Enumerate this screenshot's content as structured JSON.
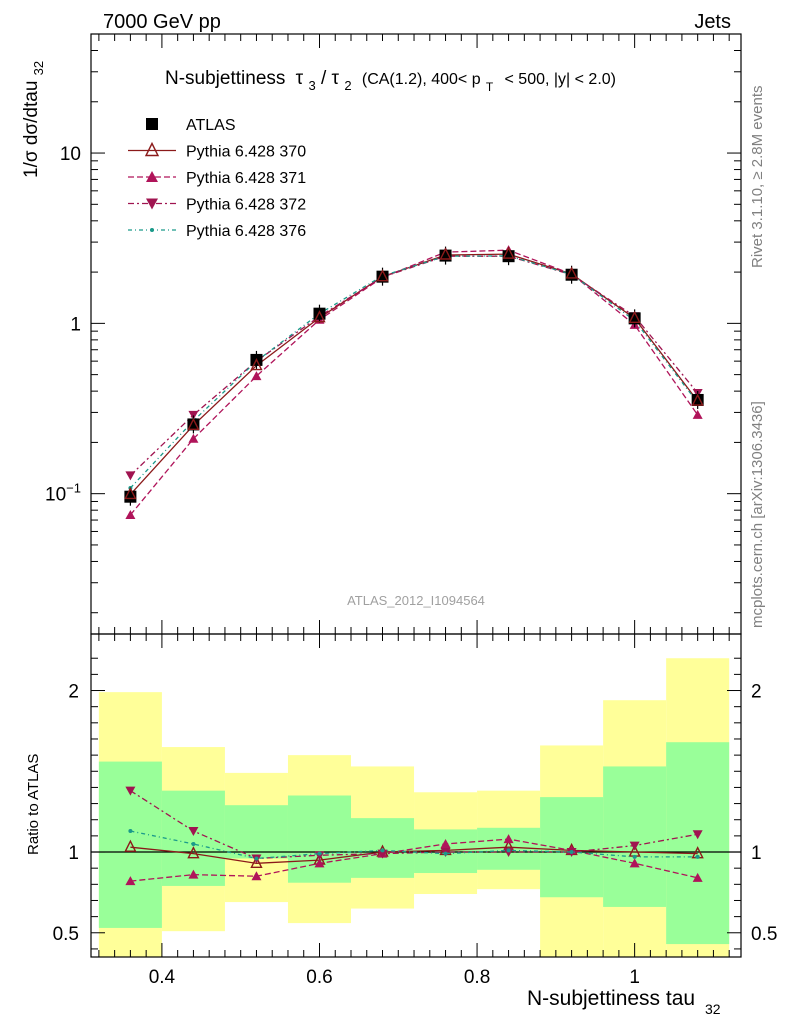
{
  "header": {
    "left": "7000 GeV pp",
    "right": "Jets"
  },
  "title": {
    "main": "N-subjettiness",
    "tau_a": "τ",
    "sub_a": "3",
    "slash": "/",
    "tau_b": "τ",
    "sub_b": "2",
    "cuts_1": "(CA(1.2), 400< p",
    "cuts_sub": "T",
    "cuts_2": "< 500, |y| < 2.0)"
  },
  "side": {
    "rivet": "Rivet 3.1.10, ≥ 2.8M events",
    "mcplots": "mcplots.cern.ch [arXiv:1306.3436]"
  },
  "analysis_id": "ATLAS_2012_I1094564",
  "ylabel_main": "1/σ dσ/dtau",
  "ylabel_main_sub": "32",
  "ylabel_ratio": "Ratio to ATLAS",
  "xlabel": "N-subjettiness tau",
  "xlabel_sub": "32",
  "colors": {
    "data": "#000000",
    "p370": "#8b1a1a",
    "p371": "#b0145a",
    "p372": "#a01450",
    "p376": "#1a9a8a",
    "band_inner": "#99ff99",
    "band_outer": "#ffff99"
  },
  "chart_data": {
    "type": "line",
    "x_edges": [
      0.32,
      0.4,
      0.48,
      0.56,
      0.64,
      0.72,
      0.8,
      0.88,
      0.96,
      1.04,
      1.12
    ],
    "x": [
      0.36,
      0.44,
      0.52,
      0.6,
      0.68,
      0.76,
      0.84,
      0.92,
      1.0,
      1.08
    ],
    "main": {
      "yscale": "log",
      "ylim": [
        0.015,
        50
      ],
      "yticks": [
        {
          "v": 0.1,
          "base": "10",
          "exp": "−1"
        },
        {
          "v": 1,
          "label": "1"
        },
        {
          "v": 10,
          "label": "10"
        }
      ],
      "series": [
        {
          "name": "ATLAS",
          "key": "data",
          "marker": "square",
          "dash": "none",
          "values": [
            0.096,
            0.255,
            0.61,
            1.14,
            1.88,
            2.5,
            2.48,
            1.93,
            1.07,
            0.355
          ]
        },
        {
          "name": "Pythia 6.428 370",
          "key": "p370",
          "marker": "triangle-up-open",
          "dash": "solid",
          "values": [
            0.099,
            0.252,
            0.565,
            1.08,
            1.88,
            2.52,
            2.55,
            1.95,
            1.07,
            0.35
          ]
        },
        {
          "name": "Pythia 6.428 371",
          "key": "p371",
          "marker": "triangle-up",
          "dash": "6,3",
          "values": [
            0.075,
            0.21,
            0.49,
            1.05,
            1.86,
            2.62,
            2.69,
            1.95,
            0.98,
            0.29
          ]
        },
        {
          "name": "Pythia 6.428 372",
          "key": "p372",
          "marker": "triangle-down",
          "dash": "6,3,2,3",
          "values": [
            0.128,
            0.29,
            0.6,
            1.1,
            1.87,
            2.48,
            2.48,
            1.93,
            1.1,
            0.39
          ]
        },
        {
          "name": "Pythia 6.428 376",
          "key": "p376",
          "marker": "small-dot",
          "dash": "4,3,1,3",
          "values": [
            0.108,
            0.268,
            0.6,
            1.14,
            1.9,
            2.48,
            2.49,
            1.94,
            1.04,
            0.342
          ]
        }
      ]
    },
    "ratio": {
      "ylim": [
        0.35,
        2.35
      ],
      "yticks": [
        0.5,
        1,
        2
      ],
      "band_inner": [
        [
          0.53,
          1.56
        ],
        [
          0.79,
          1.38
        ],
        [
          0.96,
          1.29
        ],
        [
          0.81,
          1.35
        ],
        [
          0.84,
          1.21
        ],
        [
          0.87,
          1.14
        ],
        [
          0.89,
          1.15
        ],
        [
          0.72,
          1.34
        ],
        [
          0.66,
          1.53
        ],
        [
          0.43,
          1.68
        ]
      ],
      "band_outer": [
        [
          0.35,
          1.99
        ],
        [
          0.51,
          1.65
        ],
        [
          0.69,
          1.49
        ],
        [
          0.56,
          1.6
        ],
        [
          0.65,
          1.53
        ],
        [
          0.74,
          1.37
        ],
        [
          0.77,
          1.38
        ],
        [
          0.35,
          1.66
        ],
        [
          0.35,
          1.94
        ],
        [
          0.35,
          2.2
        ]
      ],
      "series": [
        {
          "key": "p370",
          "values": [
            1.03,
            0.99,
            0.93,
            0.95,
            1.0,
            1.01,
            1.03,
            1.01,
            1.0,
            0.99
          ]
        },
        {
          "key": "p371",
          "values": [
            0.82,
            0.86,
            0.85,
            0.93,
            0.99,
            1.05,
            1.08,
            1.01,
            0.93,
            0.84
          ]
        },
        {
          "key": "p372",
          "values": [
            1.38,
            1.13,
            0.96,
            0.98,
            0.99,
            1.0,
            1.0,
            1.0,
            1.04,
            1.11
          ]
        },
        {
          "key": "p376",
          "values": [
            1.13,
            1.05,
            0.96,
            0.99,
            1.01,
            0.99,
            1.01,
            1.0,
            0.97,
            0.97
          ]
        }
      ]
    },
    "xticks": [
      0.4,
      0.6,
      0.8,
      1.0
    ],
    "xtick_labels": [
      "0.4",
      "0.6",
      "0.8",
      "1"
    ],
    "xlim": [
      0.31,
      1.135
    ]
  }
}
